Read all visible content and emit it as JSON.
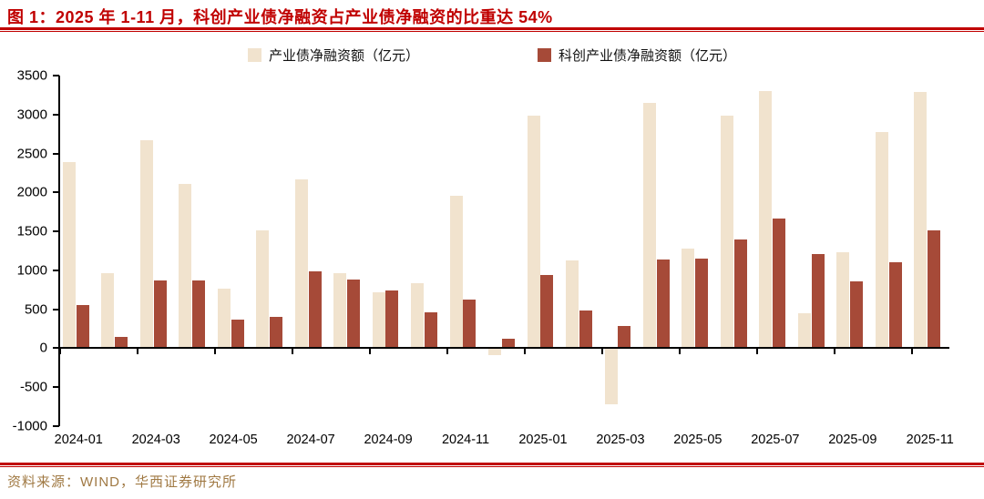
{
  "title": "图 1：2025 年 1-11 月，科创产业债净融资占产业债净融资的比重达 54%",
  "source": "资料来源：WIND，华西证券研究所",
  "colors": {
    "title_red": "#C00000",
    "rule_red": "#C00000",
    "bar_industrial": "#F1E3CE",
    "bar_tech": "#A64A38",
    "source_text": "#A07943",
    "axis": "#000000"
  },
  "legend": {
    "items": [
      {
        "label": "产业债净融资额（亿元）"
      },
      {
        "label": "科创产业债净融资额（亿元）"
      }
    ]
  },
  "chart_data": {
    "type": "bar",
    "title": "图 1：2025 年 1-11 月，科创产业债净融资占产业债净融资的比重达 54%",
    "categories": [
      "2024-01",
      "2024-02",
      "2024-03",
      "2024-04",
      "2024-05",
      "2024-06",
      "2024-07",
      "2024-08",
      "2024-09",
      "2024-10",
      "2024-11",
      "2024-12",
      "2025-01",
      "2025-02",
      "2025-03",
      "2025-04",
      "2025-05",
      "2025-06",
      "2025-07",
      "2025-08",
      "2025-09",
      "2025-10",
      "2025-11"
    ],
    "series": [
      {
        "name": "产业债净融资额（亿元）",
        "color": "#F1E3CE",
        "values": [
          2390,
          965,
          2670,
          2110,
          760,
          1510,
          2170,
          960,
          720,
          830,
          1960,
          -90,
          2990,
          1125,
          -720,
          3145,
          1275,
          2980,
          3300,
          445,
          1230,
          2770,
          3290
        ]
      },
      {
        "name": "科创产业债净融资额（亿元）",
        "color": "#A64A38",
        "values": [
          560,
          150,
          870,
          875,
          365,
          405,
          985,
          880,
          740,
          460,
          630,
          125,
          935,
          490,
          290,
          1140,
          1150,
          1400,
          1670,
          1210,
          855,
          1105,
          1515
        ]
      }
    ],
    "ylabel": "",
    "xlabel": "",
    "ylim": [
      -1000,
      3500
    ],
    "yticks": [
      3500,
      3000,
      2500,
      2000,
      1500,
      1000,
      500,
      0,
      -500,
      -1000
    ],
    "xtick_labels": [
      "2024-01",
      "2024-03",
      "2024-05",
      "2024-07",
      "2024-09",
      "2024-11",
      "2025-01",
      "2025-03",
      "2025-05",
      "2025-07",
      "2025-09",
      "2025-11"
    ],
    "xtick_every_n_categories": 2,
    "grid": false,
    "legend_position": "top-center"
  }
}
